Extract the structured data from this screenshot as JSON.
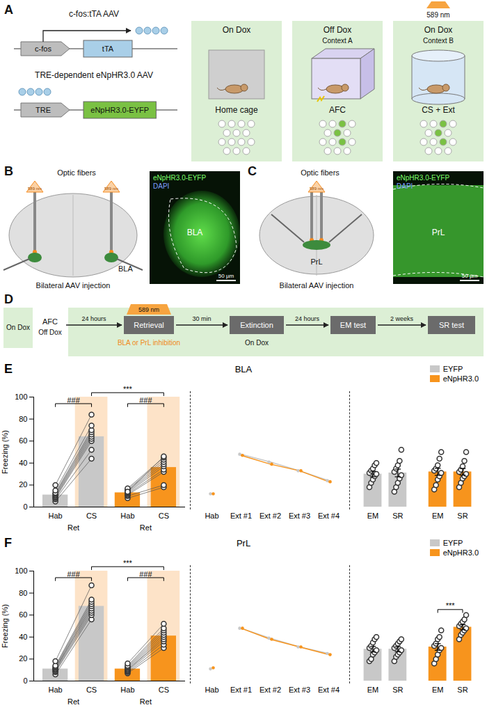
{
  "panels": {
    "A": {
      "letter": "A",
      "constructs": [
        {
          "name": "c-fos:tTA AAV",
          "promoter": "c-fos",
          "gene": "tTA"
        },
        {
          "name": "TRE-dependent eNpHR3.0 AAV",
          "promoter": "TRE",
          "gene": "eNpHR3.0-EYFP"
        }
      ],
      "stages": [
        {
          "dox": "On Dox",
          "label": "Home cage",
          "active_cells": 0
        },
        {
          "dox": "Off Dox",
          "context": "Context A",
          "label": "AFC",
          "active_cells": 3
        },
        {
          "dox": "On Dox",
          "context": "Context B",
          "label": "CS + Ext",
          "light": "589 nm",
          "active_cells": 3
        }
      ]
    },
    "B": {
      "letter": "B",
      "title": "Optic fibers",
      "light": "589 nm",
      "region": "BLA",
      "caption": "Bilateral AAV injection",
      "image": {
        "channels": [
          "eNpHR3.0-EYFP",
          "DAPI"
        ],
        "region": "BLA",
        "scale_bar": "50 µm"
      }
    },
    "C": {
      "letter": "C",
      "title": "Optic fibers",
      "light": "589 nm",
      "region": "PrL",
      "caption": "Bilateral AAV injection",
      "image": {
        "channels": [
          "eNpHR3.0-EYFP",
          "DAPI"
        ],
        "region": "PrL",
        "scale_bar": "50 µm"
      }
    },
    "D": {
      "letter": "D",
      "dox_before": "On Dox",
      "conditioning": {
        "label": "AFC",
        "dox": "Off Dox"
      },
      "timeline": [
        {
          "interval": "24 hours",
          "step": "Retrieval",
          "light": "589 nm",
          "note": "BLA or PrL inhibition"
        },
        {
          "interval": "30 min",
          "step": "Extinction"
        },
        {
          "interval": "24 hours",
          "step": "EM test"
        },
        {
          "interval": "2 weeks",
          "step": "SR test"
        }
      ],
      "dox_after": "On Dox"
    }
  },
  "chart_data": [
    {
      "type": "bar",
      "letter": "E",
      "title": "BLA",
      "y_label": "Freezing (%)",
      "ylim": [
        0,
        100
      ],
      "yticks": [
        0,
        20,
        40,
        60,
        80,
        100
      ],
      "legend": "top-right",
      "series": [
        {
          "name": "EYFP",
          "color": "#c8c8c8"
        },
        {
          "name": "eNpHR3.0",
          "color": "#f7941d"
        }
      ],
      "retrieval": {
        "label": "Ret",
        "categories": [
          "Hab",
          "CS"
        ],
        "within_label": "###",
        "between_label": "***",
        "values": {
          "EYFP": [
            11,
            64
          ],
          "eNpHR3.0": [
            13,
            36
          ]
        },
        "points": {
          "EYFP": [
            [
              5,
              7,
              8,
              9,
              10,
              11,
              12,
              13,
              15,
              20
            ],
            [
              44,
              52,
              60,
              62,
              64,
              66,
              68,
              70,
              74,
              84
            ]
          ],
          "eNpHR3.0": [
            [
              8,
              10,
              11,
              12,
              13,
              14,
              15,
              16,
              17,
              14
            ],
            [
              18,
              20,
              32,
              34,
              37,
              39,
              41,
              43,
              45,
              46
            ]
          ]
        }
      },
      "extinction": {
        "type": "line",
        "categories": [
          "Hab",
          "Ext #1",
          "Ext #2",
          "Ext #3",
          "Ext #4"
        ],
        "values": {
          "EYFP": [
            12,
            48,
            41,
            33,
            24
          ],
          "eNpHR3.0": [
            12,
            47,
            39,
            33,
            23
          ]
        }
      },
      "tests": {
        "categories": [
          "EM",
          "SR"
        ],
        "values": {
          "EYFP": [
            30,
            31
          ],
          "eNpHR3.0": [
            32,
            32
          ]
        },
        "errors": {
          "EYFP": [
            2.5,
            3.5
          ],
          "eNpHR3.0": [
            3.2,
            3
          ]
        },
        "points": {
          "EYFP": [
            [
              18,
              22,
              25,
              28,
              30,
              31,
              33,
              35,
              38,
              40
            ],
            [
              14,
              18,
              22,
              26,
              29,
              32,
              35,
              38,
              42,
              52
            ]
          ],
          "eNpHR3.0": [
            [
              16,
              20,
              25,
              28,
              31,
              33,
              35,
              38,
              44,
              50
            ],
            [
              18,
              22,
              26,
              28,
              30,
              32,
              34,
              37,
              42,
              50
            ]
          ]
        }
      }
    },
    {
      "type": "bar",
      "letter": "F",
      "title": "PrL",
      "y_label": "Freezing (%)",
      "ylim": [
        0,
        100
      ],
      "yticks": [
        0,
        20,
        40,
        60,
        80,
        100
      ],
      "legend": "top-right",
      "series": [
        {
          "name": "EYFP",
          "color": "#c8c8c8"
        },
        {
          "name": "eNpHR3.0",
          "color": "#f7941d"
        }
      ],
      "retrieval": {
        "label": "Ret",
        "categories": [
          "Hab",
          "CS"
        ],
        "within_label": "###",
        "between_label": "***",
        "values": {
          "EYFP": [
            11,
            68
          ],
          "eNpHR3.0": [
            11,
            41
          ]
        },
        "points": {
          "EYFP": [
            [
              6,
              8,
              9,
              10,
              11,
              11,
              12,
              13,
              14,
              18
            ],
            [
              56,
              60,
              62,
              64,
              66,
              68,
              70,
              72,
              74,
              87
            ]
          ],
          "eNpHR3.0": [
            [
              7,
              8,
              9,
              10,
              10,
              11,
              12,
              13,
              14,
              16
            ],
            [
              30,
              33,
              36,
              38,
              40,
              42,
              44,
              46,
              48,
              52
            ]
          ]
        }
      },
      "extinction": {
        "type": "line",
        "categories": [
          "Hab",
          "Ext #1",
          "Ext #2",
          "Ext #3",
          "Ext #4"
        ],
        "values": {
          "EYFP": [
            11,
            48,
            39,
            31,
            25
          ],
          "eNpHR3.0": [
            12,
            48,
            38,
            31,
            24
          ]
        }
      },
      "tests": {
        "categories": [
          "EM",
          "SR"
        ],
        "values": {
          "EYFP": [
            29,
            29
          ],
          "eNpHR3.0": [
            31,
            49
          ]
        },
        "errors": {
          "EYFP": [
            2.5,
            2.3
          ],
          "eNpHR3.0": [
            3,
            2.3
          ]
        },
        "points": {
          "EYFP": [
            [
              18,
              20,
              24,
              26,
              28,
              30,
              32,
              35,
              38,
              40
            ],
            [
              18,
              22,
              24,
              26,
              28,
              30,
              32,
              34,
              36,
              38
            ]
          ],
          "eNpHR3.0": [
            [
              16,
              20,
              24,
              28,
              30,
              32,
              34,
              38,
              40,
              46
            ],
            [
              38,
              42,
              44,
              46,
              48,
              50,
              52,
              54,
              56,
              60
            ]
          ]
        },
        "significance": [
          {
            "series": "eNpHR3.0",
            "label": "***"
          }
        ]
      }
    }
  ]
}
